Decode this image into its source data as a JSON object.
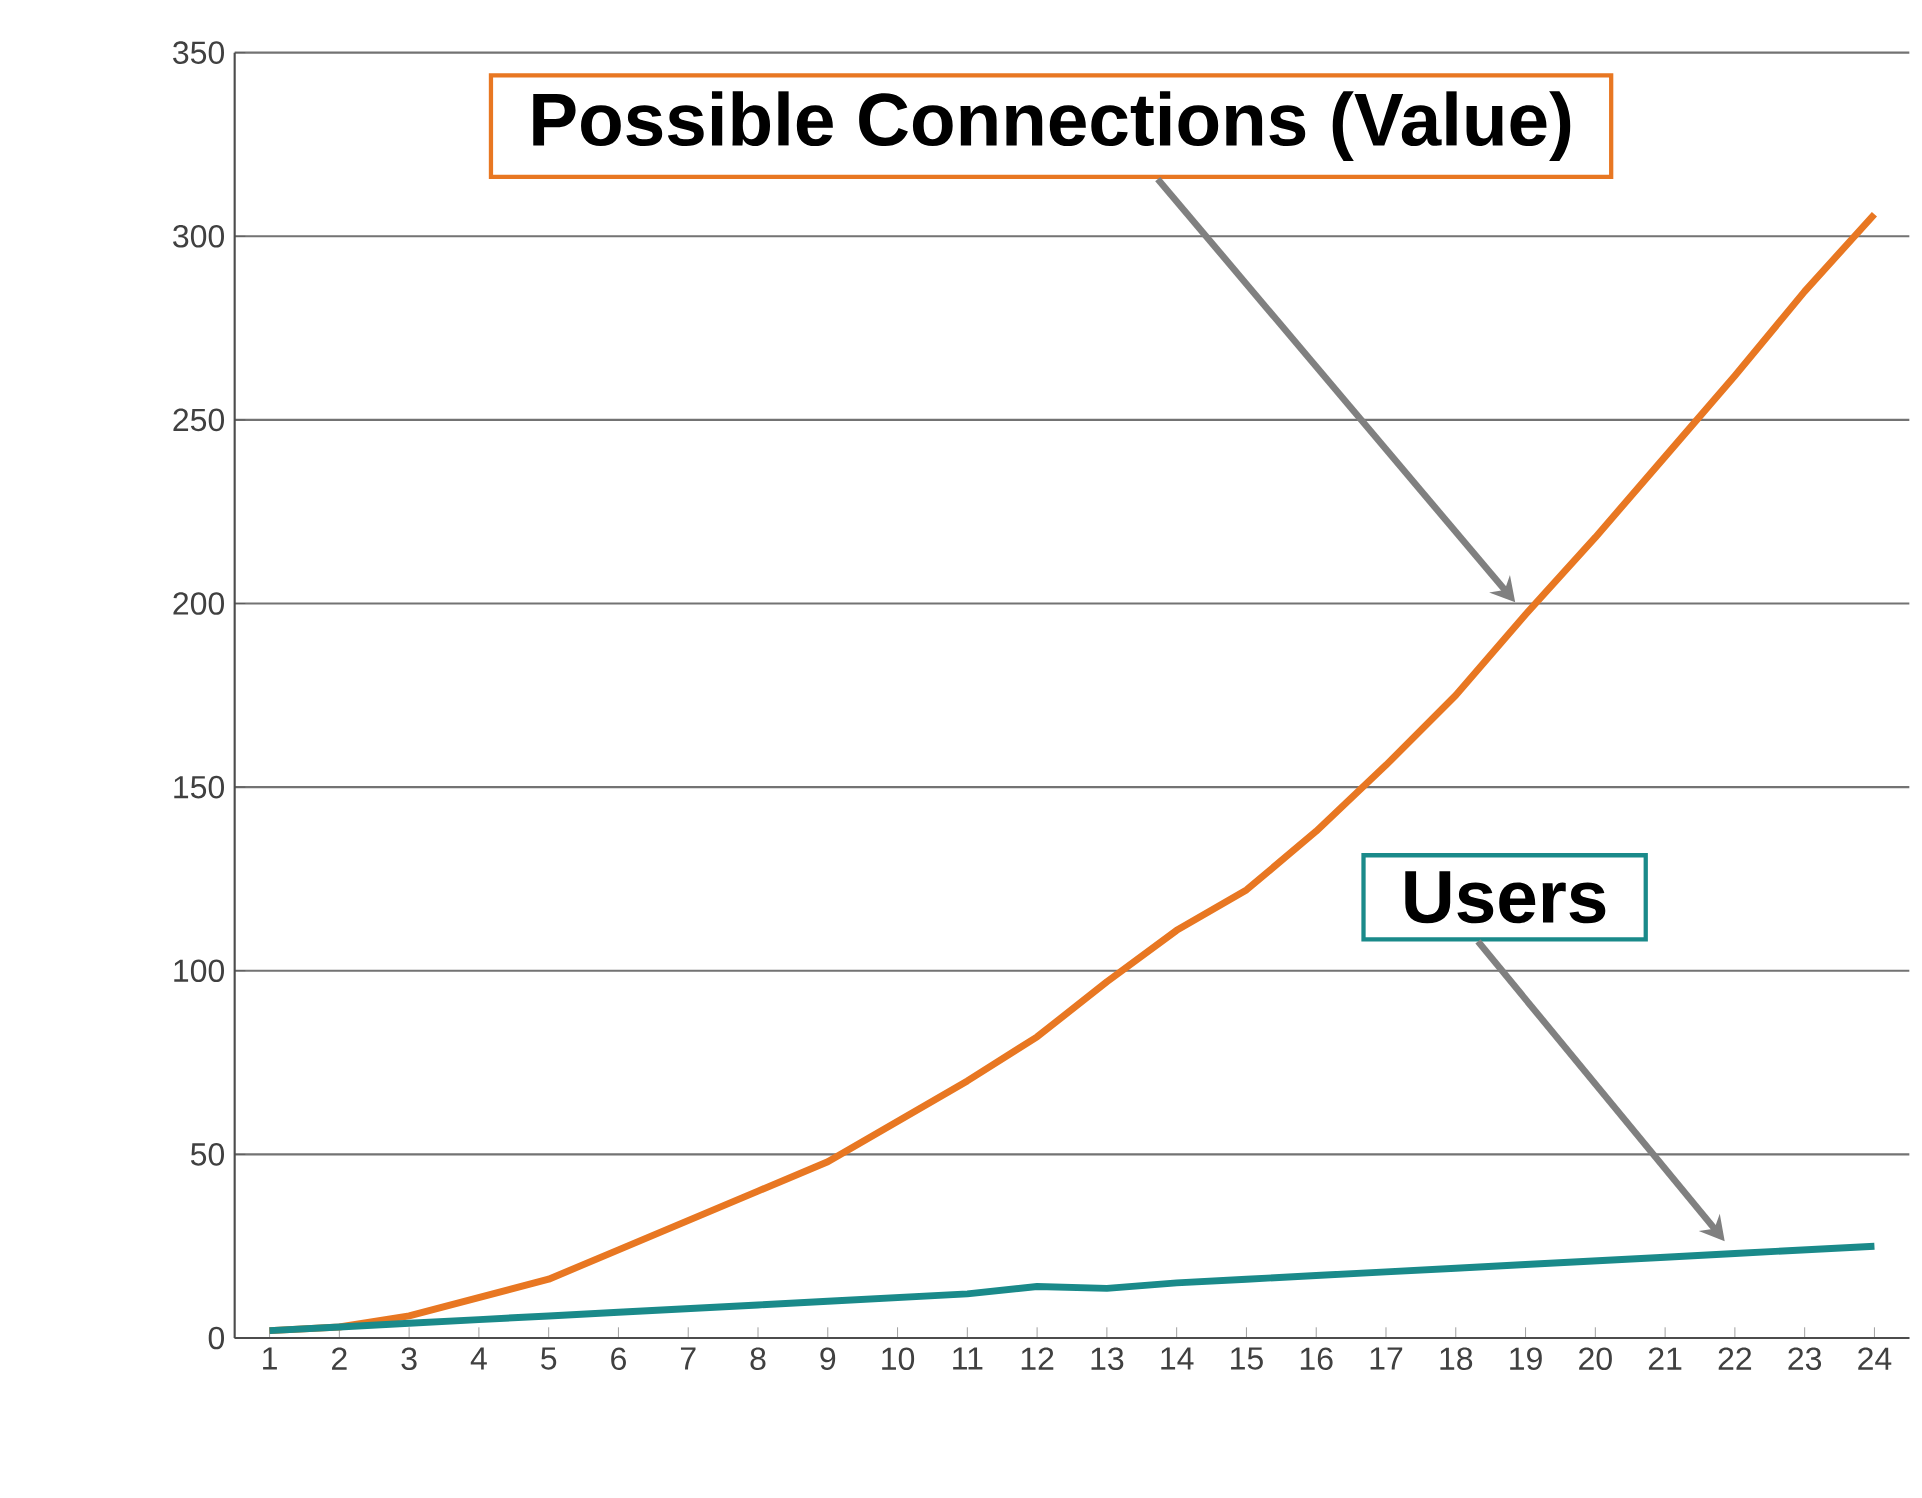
{
  "chart_data": {
    "type": "line",
    "categories": [
      "1",
      "2",
      "3",
      "4",
      "5",
      "6",
      "7",
      "8",
      "9",
      "10",
      "11",
      "12",
      "13",
      "14",
      "15",
      "16",
      "17",
      "18",
      "19",
      "20",
      "21",
      "22",
      "23",
      "24"
    ],
    "series": [
      {
        "name": "Possible Connections (Value)",
        "color": "#e87722",
        "values": [
          2,
          3,
          6,
          11,
          16,
          24,
          32,
          40,
          48,
          59,
          70,
          82,
          97,
          111,
          122,
          138,
          156,
          175,
          197,
          218,
          240,
          262,
          285,
          306
        ]
      },
      {
        "name": "Users",
        "color": "#1a8a8a",
        "values": [
          2,
          3,
          4,
          5,
          6,
          7,
          8,
          9,
          10,
          11,
          12,
          14,
          13.5,
          15,
          16,
          17,
          18,
          19,
          20,
          21,
          22,
          23,
          24,
          25
        ]
      }
    ],
    "ylim": [
      0,
      350
    ],
    "yticks": [
      0,
      50,
      100,
      150,
      200,
      250,
      300,
      350
    ],
    "grid": "y",
    "legend": false,
    "marker": "none",
    "line_style": "solid"
  }
}
